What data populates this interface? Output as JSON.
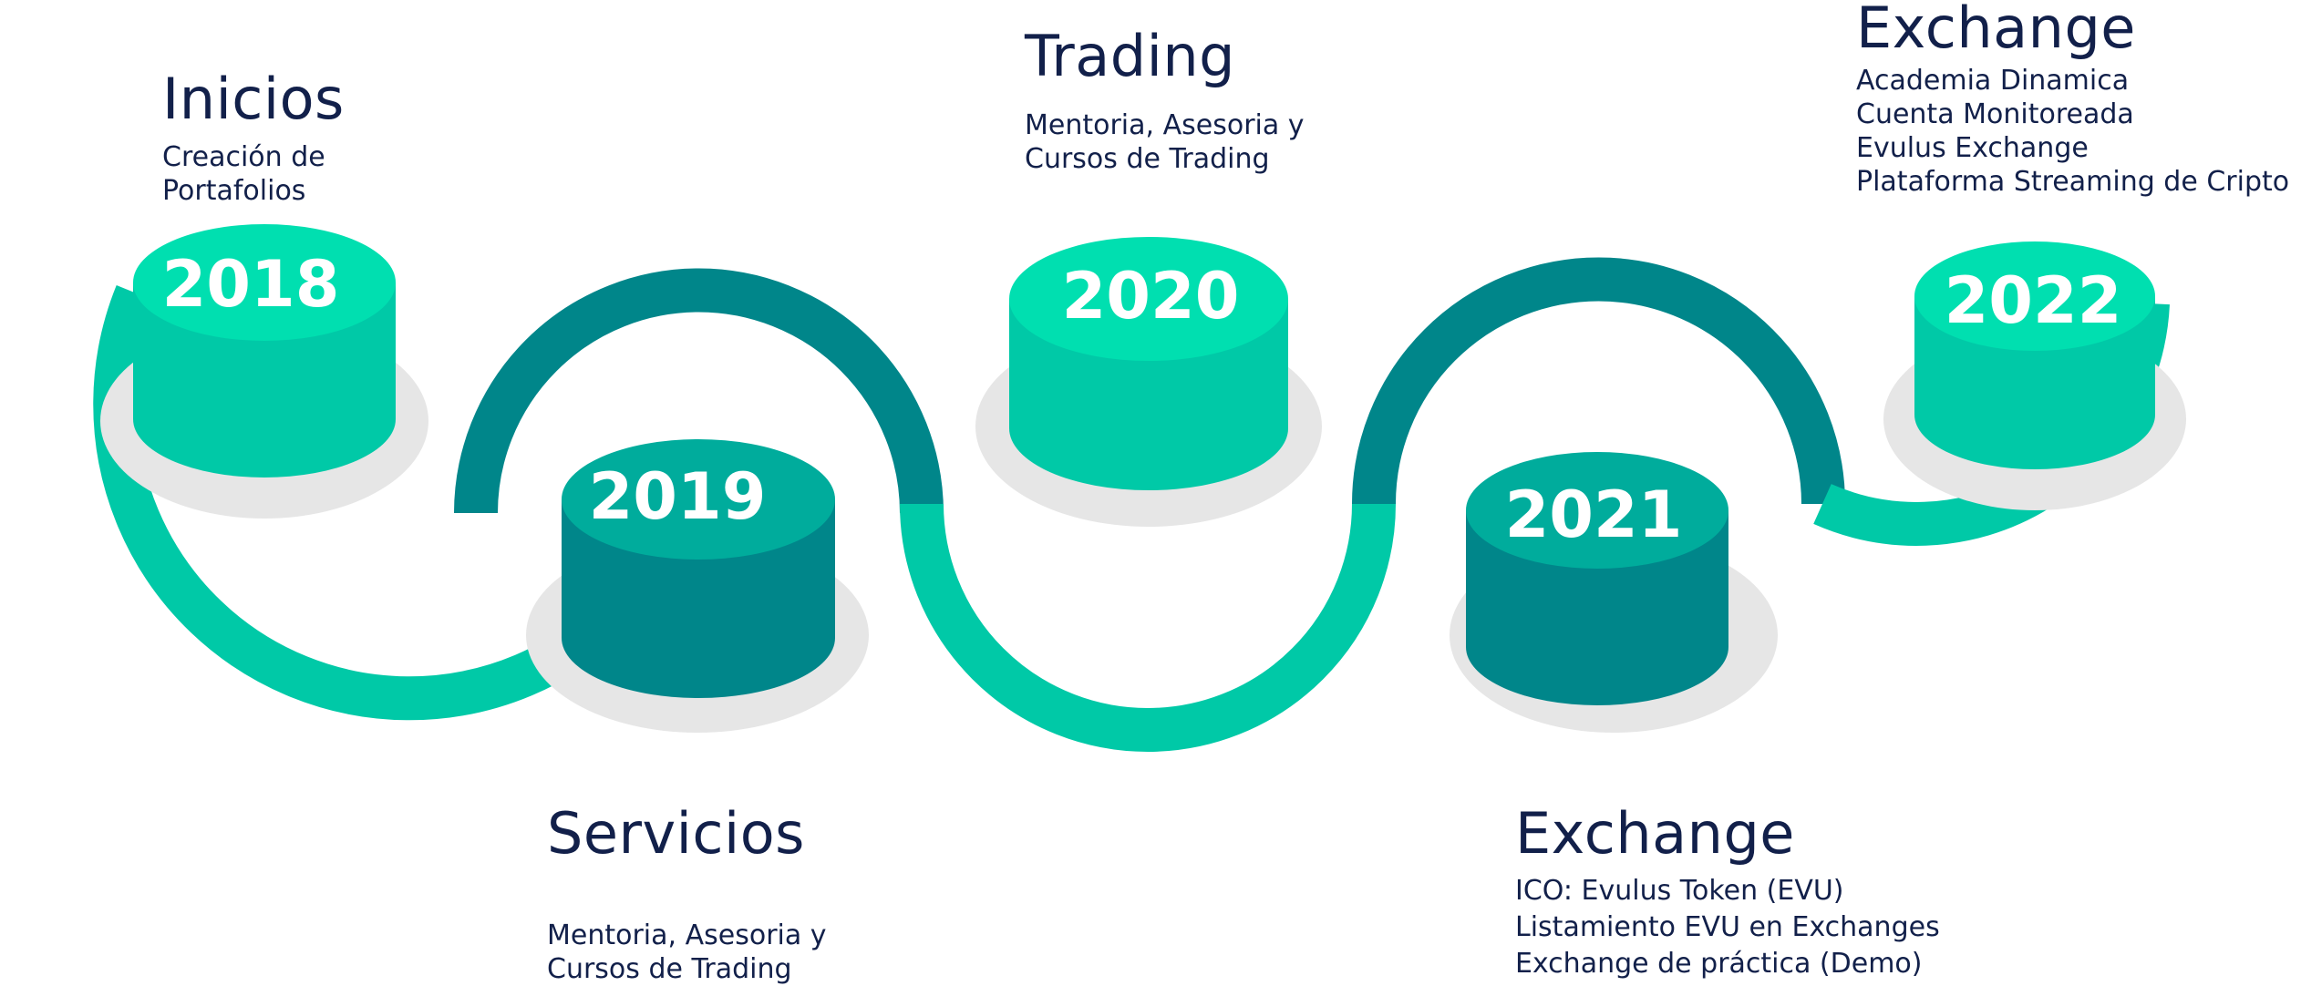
{
  "milestones": [
    {
      "year": "2018",
      "title": "Inicios",
      "lines": [
        "Creación de",
        "Portafolios"
      ]
    },
    {
      "year": "2019",
      "title": "Servicios",
      "lines": [
        "Mentoria, Asesoria y",
        "Cursos de Trading"
      ]
    },
    {
      "year": "2020",
      "title": "Trading",
      "lines": [
        "Mentoria, Asesoria y",
        "Cursos de Trading"
      ]
    },
    {
      "year": "2021",
      "title": "Exchange",
      "lines": [
        "ICO: Evulus Token (EVU)",
        "Listamiento EVU en Exchanges",
        "Exchange de práctica (Demo)"
      ]
    },
    {
      "year": "2022",
      "title": "Exchange",
      "lines": [
        "Academia Dinamica",
        "Cuenta Monitoreada",
        "Evulus Exchange",
        "Plataforma Streaming de Cripto"
      ]
    }
  ],
  "colors": {
    "light_green": "#00c9a7",
    "light_green_top": "#00dfb0",
    "dark_teal": "#00868a",
    "dark_teal_top": "#00ac9c",
    "shadow": "#e6e6e6",
    "text": "#12204a"
  }
}
